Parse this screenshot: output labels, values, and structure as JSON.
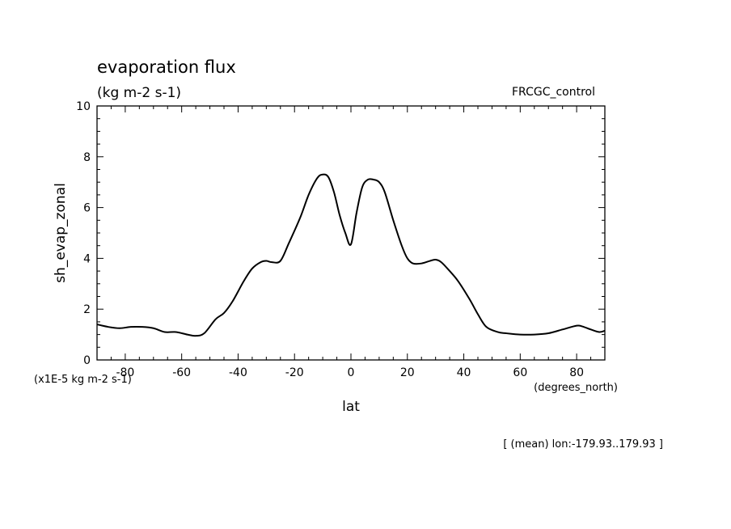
{
  "chart_data": {
    "type": "line",
    "title": "evaporation flux",
    "subtitle": "(kg m-2 s-1)",
    "experiment": "FRCGC_control",
    "ylabel": "sh_evap_zonal",
    "yunit": "(x1E-5 kg m-2 s-1)",
    "xlabel": "lat",
    "xunit": "(degrees_north)",
    "footnote": "[ (mean) lon:-179.93..179.93 ]",
    "xlim": [
      -90,
      90
    ],
    "ylim": [
      0,
      10
    ],
    "xticks": [
      -80,
      -60,
      -40,
      -20,
      0,
      20,
      40,
      60,
      80
    ],
    "yticks": [
      0,
      2,
      4,
      6,
      8,
      10
    ],
    "grid": false,
    "series": [
      {
        "x": [
          -90,
          -86,
          -82,
          -78,
          -74,
          -70,
          -66,
          -62,
          -58,
          -55,
          -52,
          -48,
          -45,
          -42,
          -38,
          -35,
          -32,
          -30,
          -28,
          -25,
          -22,
          -18,
          -15,
          -12,
          -10,
          -8,
          -6,
          -4,
          -2,
          0,
          2,
          4,
          6,
          8,
          10,
          12,
          15,
          18,
          20,
          22,
          25,
          28,
          30,
          32,
          35,
          38,
          42,
          45,
          48,
          52,
          55,
          60,
          65,
          70,
          75,
          80,
          82,
          85,
          88,
          90
        ],
        "values": [
          1.4,
          1.3,
          1.25,
          1.3,
          1.3,
          1.25,
          1.1,
          1.1,
          1.0,
          0.95,
          1.05,
          1.6,
          1.85,
          2.3,
          3.1,
          3.6,
          3.85,
          3.9,
          3.85,
          3.9,
          4.6,
          5.6,
          6.5,
          7.15,
          7.3,
          7.2,
          6.6,
          5.7,
          5.0,
          4.55,
          5.8,
          6.8,
          7.1,
          7.1,
          7.0,
          6.6,
          5.5,
          4.5,
          4.0,
          3.8,
          3.8,
          3.9,
          3.95,
          3.85,
          3.5,
          3.1,
          2.4,
          1.8,
          1.3,
          1.1,
          1.05,
          1.0,
          1.0,
          1.05,
          1.2,
          1.35,
          1.32,
          1.2,
          1.1,
          1.15
        ]
      }
    ]
  }
}
